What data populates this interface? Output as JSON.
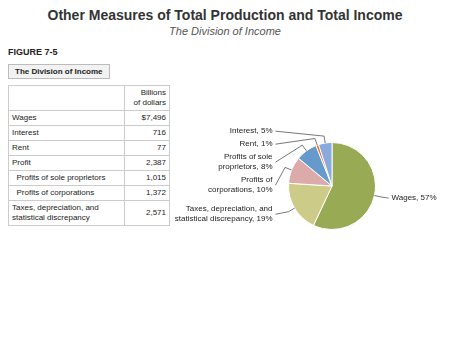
{
  "chart_data": {
    "type": "pie",
    "title": "Other Measures of Total Production and Total Income",
    "subtitle": "The Division of Income",
    "annotations": [
      "FIGURE 7-5",
      "The Division of Income"
    ],
    "categories": [
      "Wages, 57%",
      "Taxes, depreciation, and\nstatistical discrepancy, 19%",
      "Profits of\ncorporations, 10%",
      "Profits of sole\nproprietors, 8%",
      "Rent, 1%",
      "Interest, 5%"
    ],
    "values": [
      57,
      19,
      10,
      8,
      1,
      5
    ],
    "colors": [
      "#99aa55",
      "#cccc88",
      "#ddaaaa",
      "#6699cc",
      "#ee6622",
      "#88aadd"
    ],
    "table": {
      "header": "Billions\nof dollars",
      "labels": [
        "Wages",
        "Interest",
        "Rent",
        "Profit",
        "  Profits of sole proprietors",
        "  Profits of corporations",
        "Taxes, depreciation, and\nstatistical discrepancy"
      ],
      "values": [
        7496,
        716,
        77,
        2387,
        1015,
        1372,
        2571
      ],
      "value_labels": [
        "$7,496",
        "716",
        "77",
        "2,387",
        "1,015",
        "1,372",
        "2,571"
      ]
    }
  }
}
